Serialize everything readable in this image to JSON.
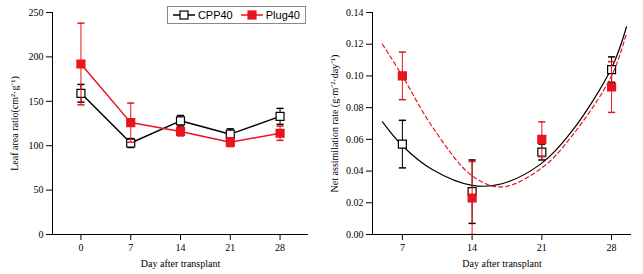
{
  "chart_data": [
    {
      "type": "line",
      "x": [
        0,
        7,
        14,
        21,
        28
      ],
      "xlim": [
        -4,
        32
      ],
      "xticks": [
        0,
        7,
        14,
        21,
        28
      ],
      "ylim": [
        0,
        250
      ],
      "yticks": [
        0,
        50,
        100,
        150,
        200,
        250
      ],
      "x_label": "Day after transplant",
      "y_label": "Leaf area ratio(cm²·g⁻¹)",
      "legend": "top-right",
      "grid": false,
      "series": [
        {
          "name": "CPP40",
          "color": "#000000",
          "marker": "square_open",
          "values": [
            159,
            103,
            128,
            113,
            133
          ],
          "errors": [
            10,
            5,
            6,
            6,
            9
          ]
        },
        {
          "name": "Plug40",
          "color": "#e8141e",
          "marker": "square",
          "values": [
            192,
            126,
            116,
            104,
            114
          ],
          "errors": [
            46,
            22,
            5,
            5,
            8
          ]
        }
      ]
    },
    {
      "type": "scatter",
      "x": [
        7,
        14,
        21,
        28
      ],
      "xlim": [
        4,
        30
      ],
      "xticks": [
        7,
        14,
        21,
        28
      ],
      "ylim": [
        0,
        0.14
      ],
      "yticks": [
        0,
        0.02,
        0.04,
        0.06,
        0.08,
        0.1,
        0.12,
        0.14
      ],
      "x_label": "Day after transplant",
      "y_label": "Net assimilation rate (g·m⁻²·day⁻¹)",
      "grid": false,
      "series": [
        {
          "name": "CPP40",
          "color": "#000000",
          "marker": "square_open",
          "values": [
            0.057,
            0.027,
            0.052,
            0.104
          ],
          "errors": [
            0.015,
            0.02,
            0.005,
            0.008
          ],
          "trend": {
            "line_style": "solid",
            "x": [
              5,
              7,
              10,
              14,
              17,
              21,
              24,
              28,
              29.5
            ],
            "values": [
              0.071,
              0.056,
              0.041,
              0.031,
              0.032,
              0.045,
              0.065,
              0.105,
              0.131
            ]
          }
        },
        {
          "name": "Plug40",
          "color": "#e8141e",
          "marker": "square",
          "values": [
            0.1,
            0.023,
            0.06,
            0.093
          ],
          "errors": [
            0.015,
            0.023,
            0.011,
            0.016
          ],
          "trend": {
            "line_style": "dashed",
            "x": [
              5,
              7,
              10,
              14,
              17,
              21,
              24,
              28,
              29.5
            ],
            "values": [
              0.12,
              0.1,
              0.068,
              0.037,
              0.03,
              0.042,
              0.062,
              0.1,
              0.127
            ]
          }
        }
      ]
    }
  ]
}
